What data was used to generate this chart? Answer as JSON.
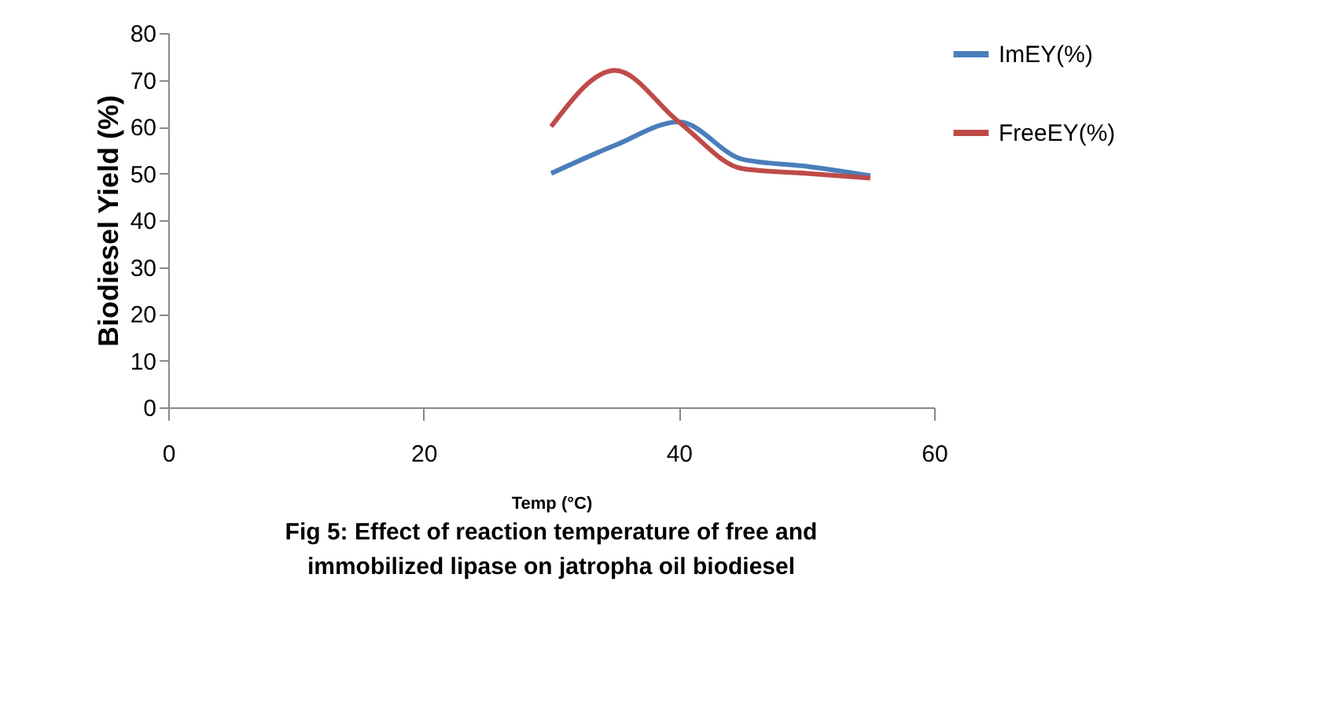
{
  "chart_data": {
    "type": "line",
    "title": "Fig 5: Effect of reaction temperature of free and immobilized lipase on jatropha oil biodiesel",
    "xlabel": "Temp (°C)",
    "ylabel": "Biodiesel Yield (%)",
    "x": [
      30,
      35,
      40,
      45,
      50,
      55
    ],
    "series": [
      {
        "name": "ImEY(%)",
        "color": "#4a7ebb",
        "values": [
          50,
          56,
          61,
          53,
          51.5,
          49.5
        ]
      },
      {
        "name": "FreeEY(%)",
        "color": "#be4b48",
        "values": [
          60,
          72,
          61,
          51,
          50,
          49
        ]
      }
    ],
    "xlim": [
      0,
      60
    ],
    "xticks": [
      0,
      20,
      40,
      60
    ],
    "ylim": [
      0,
      80
    ],
    "yticks": [
      0,
      10,
      20,
      30,
      40,
      50,
      60,
      70,
      80
    ],
    "grid": false,
    "legend": "right",
    "marker": "none",
    "line_style": "solid"
  }
}
